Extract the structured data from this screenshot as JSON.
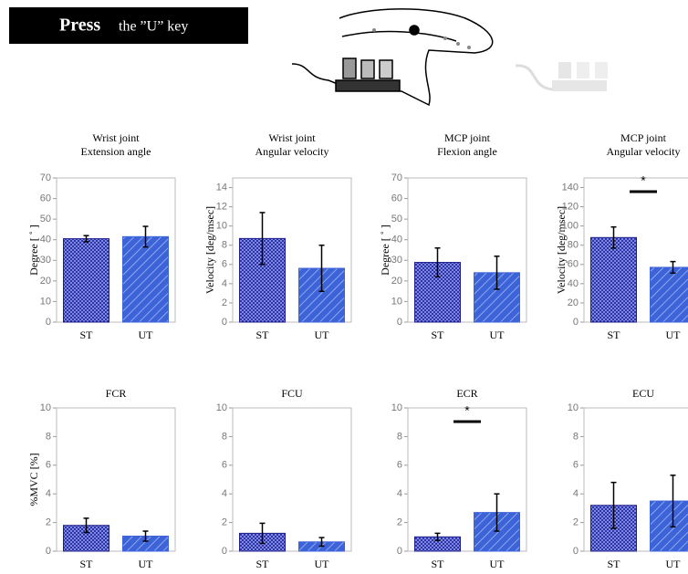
{
  "banner": {
    "bold": "Press",
    "text": "the ”U” key"
  },
  "chart_data": [
    {
      "type": "bar",
      "title": "Wrist joint",
      "subtitle": "Extension angle",
      "y_label": "Degree [ ˚ ]",
      "categories": [
        "ST",
        "UT"
      ],
      "values": [
        40.5,
        41.5
      ],
      "errors": [
        1.5,
        5
      ],
      "colors": [
        "#1c1c8a",
        "#3d63d8"
      ],
      "ylim": [
        0,
        70
      ],
      "yticks": [
        0,
        10,
        20,
        30,
        40,
        50,
        60,
        70
      ]
    },
    {
      "type": "bar",
      "title": "Wrist joint",
      "subtitle": "Angular velocity",
      "y_label": "Velocity [deg/msec]",
      "categories": [
        "ST",
        "UT"
      ],
      "values": [
        8.7,
        5.6
      ],
      "errors": [
        2.7,
        2.4
      ],
      "colors": [
        "#1c1c8a",
        "#3d63d8"
      ],
      "ylim": [
        0,
        15
      ],
      "yticks": [
        0,
        2,
        4,
        6,
        8,
        10,
        12,
        14
      ]
    },
    {
      "type": "bar",
      "title": "MCP joint",
      "subtitle": "Flexion angle",
      "y_label": "Degree [ ˚ ]",
      "categories": [
        "ST",
        "UT"
      ],
      "values": [
        29,
        24
      ],
      "errors": [
        7,
        8
      ],
      "colors": [
        "#1c1c8a",
        "#3d63d8"
      ],
      "ylim": [
        0,
        70
      ],
      "yticks": [
        0,
        10,
        20,
        30,
        40,
        50,
        60,
        70
      ]
    },
    {
      "type": "bar",
      "title": "MCP joint",
      "subtitle": "Angular velocity",
      "y_label": "Velocity [deg/msec]",
      "categories": [
        "ST",
        "UT"
      ],
      "values": [
        88,
        57
      ],
      "errors": [
        11,
        6
      ],
      "colors": [
        "#1c1c8a",
        "#3d63d8"
      ],
      "ylim": [
        0,
        150
      ],
      "yticks": [
        0,
        20,
        40,
        60,
        80,
        100,
        120,
        140
      ],
      "annotation": "*"
    },
    {
      "type": "bar",
      "title": "FCR",
      "y_label": "%MVC [%]",
      "categories": [
        "ST",
        "UT"
      ],
      "values": [
        1.8,
        1.05
      ],
      "errors": [
        0.5,
        0.35
      ],
      "colors": [
        "#1c1c8a",
        "#3d63d8"
      ],
      "ylim": [
        0,
        10
      ],
      "yticks": [
        0,
        2,
        4,
        6,
        8,
        10
      ]
    },
    {
      "type": "bar",
      "title": "FCU",
      "categories": [
        "ST",
        "UT"
      ],
      "values": [
        1.25,
        0.65
      ],
      "errors": [
        0.7,
        0.3
      ],
      "colors": [
        "#1c1c8a",
        "#3d63d8"
      ],
      "ylim": [
        0,
        10
      ],
      "yticks": [
        0,
        2,
        4,
        6,
        8,
        10
      ]
    },
    {
      "type": "bar",
      "title": "ECR",
      "categories": [
        "ST",
        "UT"
      ],
      "values": [
        1.0,
        2.7
      ],
      "errors": [
        0.25,
        1.3
      ],
      "colors": [
        "#1c1c8a",
        "#3d63d8"
      ],
      "ylim": [
        0,
        10
      ],
      "yticks": [
        0,
        2,
        4,
        6,
        8,
        10
      ],
      "annotation": "*"
    },
    {
      "type": "bar",
      "title": "ECU",
      "categories": [
        "ST",
        "UT"
      ],
      "values": [
        3.2,
        3.5
      ],
      "errors": [
        1.6,
        1.8
      ],
      "colors": [
        "#1c1c8a",
        "#3d63d8"
      ],
      "ylim": [
        0,
        10
      ],
      "yticks": [
        0,
        2,
        4,
        6,
        8,
        10
      ]
    }
  ]
}
